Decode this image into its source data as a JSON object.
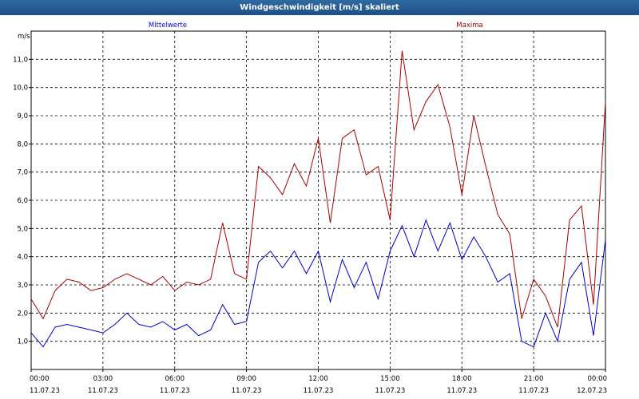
{
  "window": {
    "title": "Windgeschwindigkeit [m/s] skaliert"
  },
  "colors": {
    "series_mean": "#0000cc",
    "series_max": "#aa0000",
    "title_bar": "#1d4f86"
  },
  "chart_data": {
    "type": "line",
    "title": "Windgeschwindigkeit [m/s] skaliert",
    "ylabel": "m/s",
    "xlabel": "",
    "ylim": [
      0.0,
      12.0
    ],
    "xlim_hours": [
      0,
      24
    ],
    "grid": true,
    "legend_placement": "top",
    "y_ticks": [
      "1,0",
      "2,0",
      "3,0",
      "4,0",
      "5,0",
      "6,0",
      "7,0",
      "8,0",
      "9,0",
      "10,0",
      "11,0"
    ],
    "x_ticks": [
      {
        "time": "00:00",
        "date": "11.07.23"
      },
      {
        "time": "03:00",
        "date": "11.07.23"
      },
      {
        "time": "06:00",
        "date": "11.07.23"
      },
      {
        "time": "09:00",
        "date": "11.07.23"
      },
      {
        "time": "12:00",
        "date": "11.07.23"
      },
      {
        "time": "15:00",
        "date": "11.07.23"
      },
      {
        "time": "18:00",
        "date": "11.07.23"
      },
      {
        "time": "21:00",
        "date": "11.07.23"
      },
      {
        "time": "00:00",
        "date": "12.07.23"
      }
    ],
    "series": [
      {
        "name": "Mittelwerte",
        "color": "#0000cc",
        "x": [
          0,
          0.5,
          1,
          1.5,
          2,
          2.5,
          3,
          3.5,
          4,
          4.5,
          5,
          5.5,
          6,
          6.5,
          7,
          7.5,
          8,
          8.5,
          9,
          9.5,
          10,
          10.5,
          11,
          11.5,
          12,
          12.5,
          13,
          13.5,
          14,
          14.5,
          15,
          15.5,
          16,
          16.5,
          17,
          17.5,
          18,
          18.5,
          19,
          19.5,
          20,
          20.5,
          21,
          21.5,
          22,
          22.5,
          23,
          23.5,
          24
        ],
        "values": [
          1.3,
          0.8,
          1.5,
          1.6,
          1.5,
          1.4,
          1.3,
          1.6,
          2.0,
          1.6,
          1.5,
          1.7,
          1.4,
          1.6,
          1.2,
          1.4,
          2.3,
          1.6,
          1.7,
          3.8,
          4.2,
          3.6,
          4.2,
          3.4,
          4.2,
          2.4,
          3.9,
          2.9,
          3.8,
          2.5,
          4.2,
          5.1,
          4.0,
          5.3,
          4.2,
          5.2,
          3.9,
          4.7,
          4.0,
          3.1,
          3.4,
          1.0,
          0.8,
          2.0,
          1.0,
          3.2,
          3.8,
          1.2,
          4.6
        ]
      },
      {
        "name": "Maxima",
        "color": "#aa0000",
        "x": [
          0,
          0.5,
          1,
          1.5,
          2,
          2.5,
          3,
          3.5,
          4,
          4.5,
          5,
          5.5,
          6,
          6.5,
          7,
          7.5,
          8,
          8.5,
          9,
          9.5,
          10,
          10.5,
          11,
          11.5,
          12,
          12.5,
          13,
          13.5,
          14,
          14.5,
          15,
          15.5,
          16,
          16.5,
          17,
          17.5,
          18,
          18.5,
          19,
          19.5,
          20,
          20.5,
          21,
          21.5,
          22,
          22.5,
          23,
          23.5,
          24
        ],
        "values": [
          2.5,
          1.8,
          2.8,
          3.2,
          3.1,
          2.8,
          2.9,
          3.2,
          3.4,
          3.2,
          3.0,
          3.3,
          2.8,
          3.1,
          3.0,
          3.2,
          5.2,
          3.4,
          3.2,
          7.2,
          6.8,
          6.2,
          7.3,
          6.5,
          8.2,
          5.2,
          8.2,
          8.5,
          6.9,
          7.2,
          5.3,
          11.3,
          8.5,
          9.5,
          10.1,
          8.6,
          6.2,
          9.0,
          7.2,
          5.5,
          4.8,
          1.8,
          3.2,
          2.6,
          1.5,
          5.3,
          5.8,
          2.3,
          9.5
        ]
      }
    ]
  }
}
